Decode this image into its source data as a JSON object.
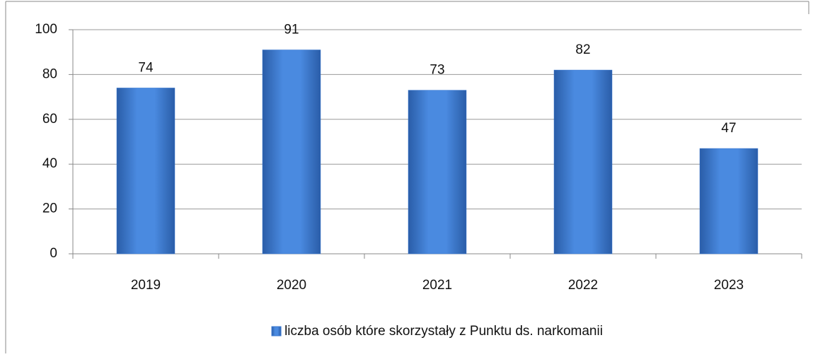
{
  "chart_data": {
    "type": "bar",
    "categories": [
      "2019",
      "2020",
      "2021",
      "2022",
      "2023"
    ],
    "series": [
      {
        "name": "liczba osób które skorzystały z Punktu ds. narkomanii",
        "color": "#3a78d0",
        "values": [
          74,
          91,
          73,
          82,
          47
        ]
      }
    ],
    "ylim": [
      0,
      100
    ],
    "yticks": [
      0,
      20,
      40,
      60,
      80,
      100
    ],
    "grid": true,
    "legend": "bottom",
    "data_labels": true
  }
}
